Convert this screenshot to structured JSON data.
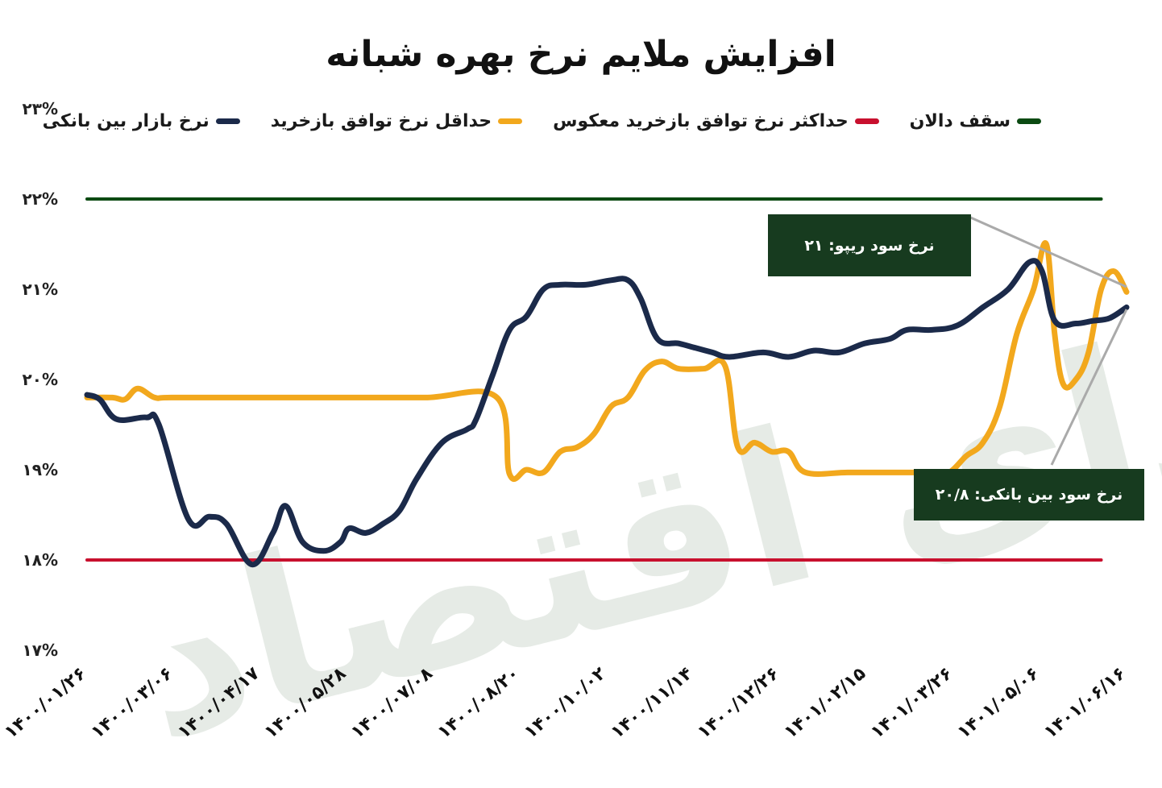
{
  "title": "افزایش ملایم نرخ بهره شبانه",
  "watermark": "فردای اقتصاد",
  "legend": [
    {
      "label": "سقف دالان",
      "color": "#0b4a12"
    },
    {
      "label": "حداکثر نرخ توافق بازخرید معکوس",
      "color": "#c8102e"
    },
    {
      "label": "حداقل نرخ توافق بازخرید",
      "color": "#f2a81d"
    },
    {
      "label": "نرخ بازار بین بانکی",
      "color": "#1b2a4a"
    }
  ],
  "callouts": {
    "repo": "نرخ سود ریپو: ۲۱",
    "interbank": "نرخ سود بین بانکی: ۲۰/۸"
  },
  "chart_data": {
    "type": "line",
    "ylim": [
      17,
      23
    ],
    "xlim": [
      0,
      12
    ],
    "y_ticks": [
      {
        "value": 17,
        "label": "۱۷%"
      },
      {
        "value": 18,
        "label": "۱۸%"
      },
      {
        "value": 19,
        "label": "۱۹%"
      },
      {
        "value": 20,
        "label": "۲۰%"
      },
      {
        "value": 21,
        "label": "۲۱%"
      },
      {
        "value": 22,
        "label": "۲۲%"
      },
      {
        "value": 23,
        "label": "۲۳%"
      }
    ],
    "x_ticks": [
      {
        "index": 0,
        "label": "۱۴۰۰/۰۱/۲۶"
      },
      {
        "index": 1,
        "label": "۱۴۰۰/۰۳/۰۶"
      },
      {
        "index": 2,
        "label": "۱۴۰۰/۰۴/۱۷"
      },
      {
        "index": 3,
        "label": "۱۴۰۰/۰۵/۲۸"
      },
      {
        "index": 4,
        "label": "۱۴۰۰/۰۷/۰۸"
      },
      {
        "index": 5,
        "label": "۱۴۰۰/۰۸/۲۰"
      },
      {
        "index": 6,
        "label": "۱۴۰۰/۱۰/۰۲"
      },
      {
        "index": 7,
        "label": "۱۴۰۰/۱۱/۱۴"
      },
      {
        "index": 8,
        "label": "۱۴۰۰/۱۲/۲۶"
      },
      {
        "index": 9,
        "label": "۱۴۰۱/۰۲/۱۵"
      },
      {
        "index": 10,
        "label": "۱۴۰۱/۰۳/۲۶"
      },
      {
        "index": 11,
        "label": "۱۴۰۱/۰۵/۰۶"
      },
      {
        "index": 12,
        "label": "۱۴۰۱/۰۶/۱۶"
      }
    ],
    "series": [
      {
        "name": "سقف دالان",
        "color": "#0b4a12",
        "points": [
          [
            0,
            22
          ],
          [
            12,
            22
          ]
        ]
      },
      {
        "name": "حداکثر نرخ توافق بازخرید معکوس",
        "color": "#c8102e",
        "points": [
          [
            0,
            18
          ],
          [
            12,
            18
          ]
        ]
      },
      {
        "name": "حداقل نرخ توافق بازخرید",
        "color": "#f2a81d",
        "points": [
          [
            0,
            19.8
          ],
          [
            0.3,
            19.8
          ],
          [
            0.45,
            19.78
          ],
          [
            0.6,
            19.9
          ],
          [
            0.8,
            19.8
          ],
          [
            1.0,
            19.8
          ],
          [
            2.0,
            19.8
          ],
          [
            3.0,
            19.8
          ],
          [
            4.0,
            19.8
          ],
          [
            4.85,
            19.8
          ],
          [
            5.0,
            18.95
          ],
          [
            5.2,
            19.0
          ],
          [
            5.4,
            18.97
          ],
          [
            5.6,
            19.2
          ],
          [
            5.8,
            19.25
          ],
          [
            6.0,
            19.4
          ],
          [
            6.2,
            19.7
          ],
          [
            6.4,
            19.8
          ],
          [
            6.6,
            20.1
          ],
          [
            6.8,
            20.2
          ],
          [
            7.0,
            20.12
          ],
          [
            7.3,
            20.12
          ],
          [
            7.55,
            20.15
          ],
          [
            7.7,
            19.25
          ],
          [
            7.9,
            19.3
          ],
          [
            8.1,
            19.2
          ],
          [
            8.3,
            19.2
          ],
          [
            8.5,
            18.97
          ],
          [
            9.0,
            18.97
          ],
          [
            9.5,
            18.97
          ],
          [
            10.0,
            18.97
          ],
          [
            10.2,
            18.97
          ],
          [
            10.4,
            19.15
          ],
          [
            10.6,
            19.3
          ],
          [
            10.8,
            19.7
          ],
          [
            11.0,
            20.5
          ],
          [
            11.2,
            21.0
          ],
          [
            11.35,
            21.5
          ],
          [
            11.45,
            20.5
          ],
          [
            11.55,
            19.95
          ],
          [
            11.7,
            20.0
          ],
          [
            11.85,
            20.3
          ],
          [
            12.0,
            21.0
          ],
          [
            12.15,
            21.2
          ],
          [
            12.3,
            20.97
          ]
        ]
      },
      {
        "name": "نرخ بازار بین بانکی",
        "color": "#1b2a4a",
        "points": [
          [
            0,
            19.83
          ],
          [
            0.15,
            19.78
          ],
          [
            0.35,
            19.56
          ],
          [
            0.7,
            19.58
          ],
          [
            0.85,
            19.5
          ],
          [
            1.2,
            18.45
          ],
          [
            1.45,
            18.48
          ],
          [
            1.65,
            18.4
          ],
          [
            1.95,
            17.95
          ],
          [
            2.2,
            18.3
          ],
          [
            2.35,
            18.6
          ],
          [
            2.55,
            18.2
          ],
          [
            2.8,
            18.1
          ],
          [
            3.0,
            18.2
          ],
          [
            3.1,
            18.35
          ],
          [
            3.3,
            18.3
          ],
          [
            3.5,
            18.4
          ],
          [
            3.7,
            18.55
          ],
          [
            3.9,
            18.9
          ],
          [
            4.2,
            19.3
          ],
          [
            4.5,
            19.45
          ],
          [
            4.6,
            19.55
          ],
          [
            4.8,
            20.05
          ],
          [
            5.0,
            20.55
          ],
          [
            5.2,
            20.7
          ],
          [
            5.4,
            21.0
          ],
          [
            5.6,
            21.05
          ],
          [
            5.9,
            21.05
          ],
          [
            6.2,
            21.1
          ],
          [
            6.4,
            21.1
          ],
          [
            6.55,
            20.9
          ],
          [
            6.75,
            20.45
          ],
          [
            7.0,
            20.4
          ],
          [
            7.2,
            20.35
          ],
          [
            7.4,
            20.3
          ],
          [
            7.6,
            20.25
          ],
          [
            8.0,
            20.3
          ],
          [
            8.3,
            20.25
          ],
          [
            8.6,
            20.32
          ],
          [
            8.9,
            20.3
          ],
          [
            9.2,
            20.4
          ],
          [
            9.5,
            20.45
          ],
          [
            9.7,
            20.55
          ],
          [
            10.0,
            20.55
          ],
          [
            10.3,
            20.6
          ],
          [
            10.6,
            20.8
          ],
          [
            10.9,
            21.0
          ],
          [
            11.15,
            21.3
          ],
          [
            11.3,
            21.2
          ],
          [
            11.45,
            20.65
          ],
          [
            11.7,
            20.62
          ],
          [
            11.9,
            20.65
          ],
          [
            12.1,
            20.68
          ],
          [
            12.3,
            20.8
          ]
        ]
      }
    ]
  }
}
